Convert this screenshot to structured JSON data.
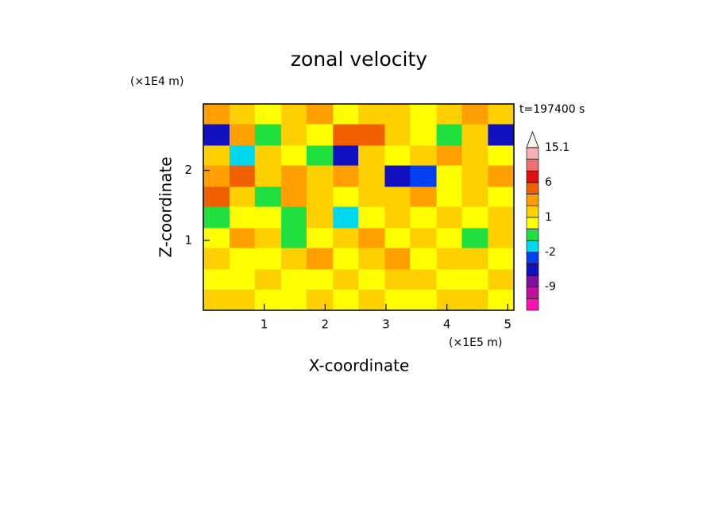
{
  "chart_data": {
    "type": "contour",
    "title": "zonal velocity",
    "annotation": "t=197400 s",
    "xlabel": "X-coordinate",
    "ylabel": "Z-coordinate",
    "xunit": "(×1E5 m)",
    "yunit": "(×1E4 m)",
    "xlim": [
      0,
      5.1
    ],
    "ylim": [
      0,
      2.95
    ],
    "xticks": [
      1,
      2,
      3,
      4,
      5
    ],
    "yticks": [
      1,
      2
    ],
    "x": [
      0.21,
      0.64,
      1.06,
      1.49,
      1.91,
      2.34,
      2.76,
      3.19,
      3.61,
      4.04,
      4.46,
      4.89
    ],
    "y": [
      2.8,
      2.51,
      2.21,
      1.92,
      1.62,
      1.33,
      1.03,
      0.74,
      0.44,
      0.15
    ],
    "z": [
      [
        2,
        1,
        0,
        1,
        2,
        0,
        1,
        1,
        0,
        1,
        2,
        1
      ],
      [
        -5,
        2,
        -1,
        1,
        0,
        3,
        4,
        1,
        0,
        -1,
        1,
        -5
      ],
      [
        1,
        -2,
        1,
        0,
        -1,
        -6,
        1,
        0,
        1,
        2,
        1,
        0
      ],
      [
        2,
        3,
        1,
        2,
        1,
        2,
        1,
        -5,
        -4,
        0,
        1,
        2
      ],
      [
        3,
        1,
        -1,
        2,
        1,
        0,
        1,
        1,
        2,
        0,
        1,
        0
      ],
      [
        -1,
        0,
        0,
        -1,
        1,
        -2,
        0,
        1,
        0,
        1,
        0,
        1
      ],
      [
        0,
        2,
        1,
        -1,
        0,
        1,
        2,
        0,
        1,
        0,
        -1,
        1
      ],
      [
        1,
        0,
        0,
        1,
        2,
        0,
        1,
        2,
        0,
        1,
        1,
        0
      ],
      [
        0,
        0,
        1,
        0,
        0,
        1,
        0,
        1,
        1,
        0,
        0,
        1
      ],
      [
        1,
        1,
        0,
        0,
        1,
        0,
        1,
        0,
        0,
        1,
        1,
        0
      ]
    ],
    "colorbar": {
      "levels": [
        -12,
        -9,
        -6,
        -4,
        -2,
        -1,
        0,
        1,
        2,
        3,
        6,
        9,
        12,
        15.1
      ],
      "colors": [
        "#ff10b0",
        "#c010a0",
        "#8010a0",
        "#1010c0",
        "#0040f0",
        "#00d8f0",
        "#20e040",
        "#ffff00",
        "#ffd000",
        "#ffa000",
        "#f06000",
        "#e01010",
        "#f07070",
        "#f8b0b0",
        "#fff0f0"
      ],
      "ticks": [
        15.1,
        6,
        1,
        -2,
        -9
      ]
    }
  }
}
